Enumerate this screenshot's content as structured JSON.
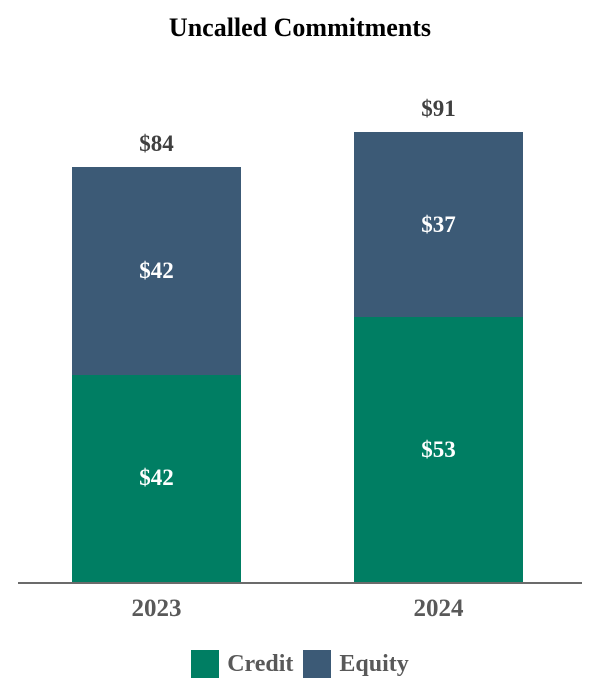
{
  "chart_data": {
    "type": "bar",
    "stacked": true,
    "title": "Uncalled Commitments",
    "categories": [
      "2023",
      "2024"
    ],
    "series": [
      {
        "name": "Credit",
        "values": [
          42,
          53
        ],
        "color": "#007E63"
      },
      {
        "name": "Equity",
        "values": [
          42,
          37
        ],
        "color": "#3C5A76"
      }
    ],
    "totals": [
      84,
      91
    ],
    "value_prefix": "$",
    "value_labels": {
      "Credit": [
        "$42",
        "$53"
      ],
      "Equity": [
        "$42",
        "$37"
      ],
      "totals": [
        "$84",
        "$91"
      ]
    },
    "legend_position": "bottom",
    "grid": false,
    "y_axis_visible": false,
    "x_axis_line": true
  },
  "colors": {
    "credit": "#007E63",
    "equity": "#3C5A76",
    "axis_line": "#6b6b6b",
    "title_text": "#000000",
    "total_label_text": "#404040",
    "category_label_text": "#595959",
    "segment_label_text": "#ffffff"
  },
  "legend": {
    "items": [
      {
        "label": "Credit",
        "color_key": "credit"
      },
      {
        "label": "Equity",
        "color_key": "equity"
      }
    ]
  }
}
